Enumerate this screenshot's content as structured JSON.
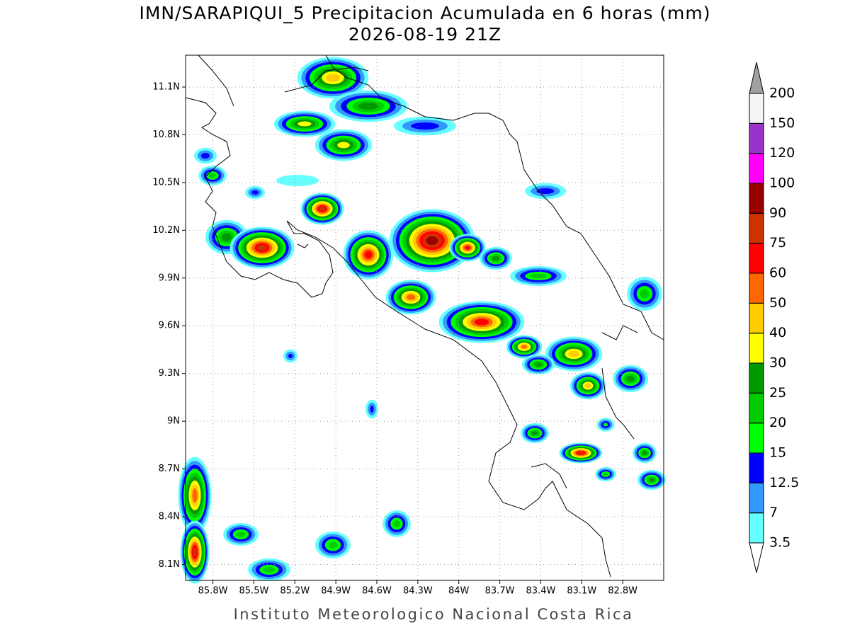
{
  "header": {
    "title": "IMN/SARAPIQUI_5 Precipitacion Acumulada en 6 horas (mm)",
    "subtitle": "2026-08-19 21Z"
  },
  "map": {
    "lonlim": [
      -86.0,
      -82.5
    ],
    "latlim": [
      8.0,
      11.3
    ],
    "grid": true,
    "lon_ticks": [
      {
        "value": -85.8,
        "label": "85.8W"
      },
      {
        "value": -85.5,
        "label": "85.5W"
      },
      {
        "value": -85.2,
        "label": "85.2W"
      },
      {
        "value": -84.9,
        "label": "84.9W"
      },
      {
        "value": -84.6,
        "label": "84.6W"
      },
      {
        "value": -84.3,
        "label": "84.3W"
      },
      {
        "value": -84.0,
        "label": "84W"
      },
      {
        "value": -83.7,
        "label": "83.7W"
      },
      {
        "value": -83.4,
        "label": "83.4W"
      },
      {
        "value": -83.1,
        "label": "83.1W"
      },
      {
        "value": -82.8,
        "label": "82.8W"
      }
    ],
    "lat_ticks": [
      {
        "value": 8.1,
        "label": "8.1N"
      },
      {
        "value": 8.4,
        "label": "8.4N"
      },
      {
        "value": 8.7,
        "label": "8.7N"
      },
      {
        "value": 9.0,
        "label": "9N"
      },
      {
        "value": 9.3,
        "label": "9.3N"
      },
      {
        "value": 9.6,
        "label": "9.6N"
      },
      {
        "value": 9.9,
        "label": "9.9N"
      },
      {
        "value": 10.2,
        "label": "10.2N"
      },
      {
        "value": 10.5,
        "label": "10.5N"
      },
      {
        "value": 10.8,
        "label": "10.8N"
      },
      {
        "value": 11.1,
        "label": "11.1N"
      }
    ]
  },
  "colorbar": {
    "levels": [
      3.5,
      7,
      12.5,
      15,
      20,
      25,
      30,
      40,
      50,
      60,
      75,
      90,
      100,
      120,
      150,
      200
    ],
    "colors": [
      "#ffffff",
      "#66ffff",
      "#3399ff",
      "#0000ff",
      "#00ff00",
      "#00cc00",
      "#009900",
      "#ffff00",
      "#ffcc00",
      "#ff6600",
      "#ff0000",
      "#cc3300",
      "#990000",
      "#ff00ff",
      "#9933cc",
      "#f5f5f5",
      "#a0a0a0"
    ]
  },
  "footer": "Instituto Meteorologico Nacional Costa Rica"
}
